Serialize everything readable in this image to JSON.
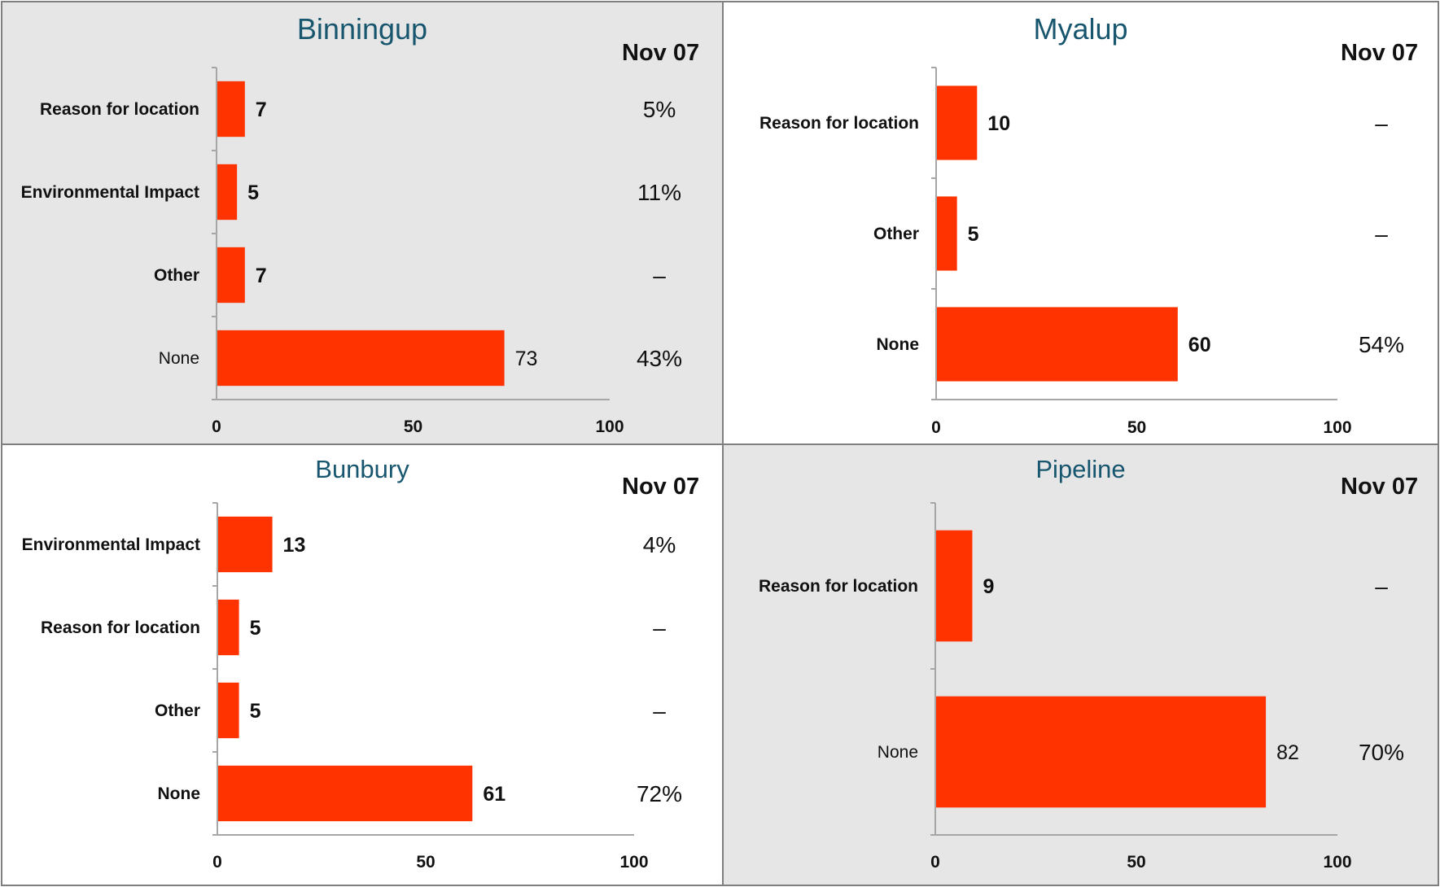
{
  "chart_data": [
    {
      "type": "bar",
      "title": "Binningup",
      "column_header": "Nov 07",
      "categories": [
        "Reason for location",
        "Environmental Impact",
        "Other",
        "None"
      ],
      "values": [
        7,
        5,
        7,
        73
      ],
      "nov07": [
        "5%",
        "11%",
        "–",
        "43%"
      ],
      "xticks": [
        "0",
        "50",
        "100"
      ],
      "xlim": [
        0,
        100
      ],
      "background": "#e6e6e6"
    },
    {
      "type": "bar",
      "title": "Myalup",
      "column_header": "Nov 07",
      "categories": [
        "Reason for location",
        "Other",
        "None"
      ],
      "values": [
        10,
        5,
        60
      ],
      "nov07": [
        "–",
        "–",
        "54%"
      ],
      "xticks": [
        "0",
        "50",
        "100"
      ],
      "xlim": [
        0,
        100
      ],
      "background": "#ffffff"
    },
    {
      "type": "bar",
      "title": "Bunbury",
      "column_header": "Nov 07",
      "categories": [
        "Environmental Impact",
        "Reason for location",
        "Other",
        "None"
      ],
      "values": [
        13,
        5,
        5,
        61
      ],
      "nov07": [
        "4%",
        "–",
        "–",
        "72%"
      ],
      "xticks": [
        "0",
        "50",
        "100"
      ],
      "xlim": [
        0,
        100
      ],
      "background": "#ffffff"
    },
    {
      "type": "bar",
      "title": "Pipeline",
      "column_header": "Nov 07",
      "categories": [
        "Reason for location",
        "None"
      ],
      "values": [
        9,
        82
      ],
      "nov07": [
        "–",
        "70%"
      ],
      "xticks": [
        "0",
        "50",
        "100"
      ],
      "xlim": [
        0,
        100
      ],
      "background": "#e6e6e6"
    }
  ],
  "colors": {
    "bar": "#ff3300",
    "title": "#17566e",
    "axis": "#a6a6a6"
  }
}
